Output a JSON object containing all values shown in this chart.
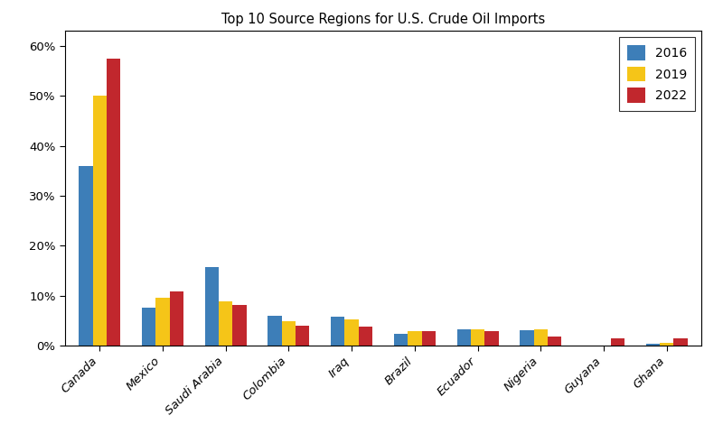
{
  "title": "Top 10 Source Regions for U.S. Crude Oil Imports",
  "categories": [
    "Canada",
    "Mexico",
    "Saudi Arabia",
    "Colombia",
    "Iraq",
    "Brazil",
    "Ecuador",
    "Nigeria",
    "Guyana",
    "Ghana"
  ],
  "years": [
    "2016",
    "2019",
    "2022"
  ],
  "colors": [
    "#3d7eb8",
    "#f5c518",
    "#c1272d"
  ],
  "values": {
    "2016": [
      36.0,
      7.5,
      15.8,
      6.0,
      5.8,
      2.3,
      3.2,
      3.0,
      0.0,
      0.3
    ],
    "2019": [
      50.0,
      9.5,
      8.8,
      4.8,
      5.2,
      2.8,
      3.2,
      3.2,
      0.0,
      0.5
    ],
    "2022": [
      57.5,
      10.8,
      8.2,
      4.0,
      3.8,
      2.8,
      2.8,
      1.8,
      1.5,
      1.5
    ]
  },
  "ylim": [
    0,
    63
  ],
  "yticks": [
    0,
    10,
    20,
    30,
    40,
    50,
    60
  ],
  "figsize": [
    8.0,
    4.91
  ],
  "dpi": 100,
  "bar_width": 0.22,
  "group_width": 0.85
}
